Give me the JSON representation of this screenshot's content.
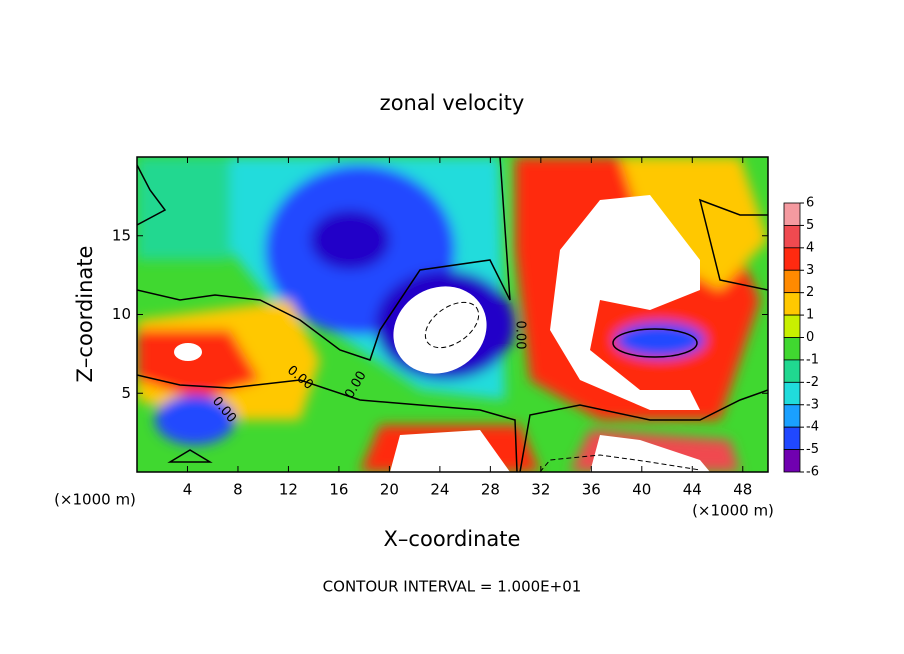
{
  "chart_data": {
    "type": "contour",
    "title": "zonal velocity",
    "x_label": "X–coordinate",
    "y_label": "Z–coordinate",
    "y_unit": "(×1000 m)",
    "x_unit": "(×1000 m)",
    "xlim": [
      0,
      50
    ],
    "ylim": [
      0,
      20
    ],
    "xticks": [
      4,
      8,
      12,
      16,
      20,
      24,
      28,
      32,
      36,
      40,
      44,
      48
    ],
    "yticks": [
      5,
      10,
      15
    ],
    "colorbar": {
      "ticks": [
        6,
        5,
        4,
        3,
        2,
        1,
        0,
        -1,
        -2,
        -3,
        -4,
        -5,
        -6
      ],
      "colors": [
        "#f59aa0",
        "#f04a50",
        "#ff2a10",
        "#ff8a00",
        "#ffc800",
        "#c8f000",
        "#40d830",
        "#20d890",
        "#20dcdc",
        "#1aa0ff",
        "#2048ff",
        "#7000b0"
      ]
    },
    "contour_labels": [
      "0.00",
      "0.00",
      "0.00",
      "0.00"
    ],
    "footer": "CONTOUR INTERVAL = 1.000E+01"
  }
}
